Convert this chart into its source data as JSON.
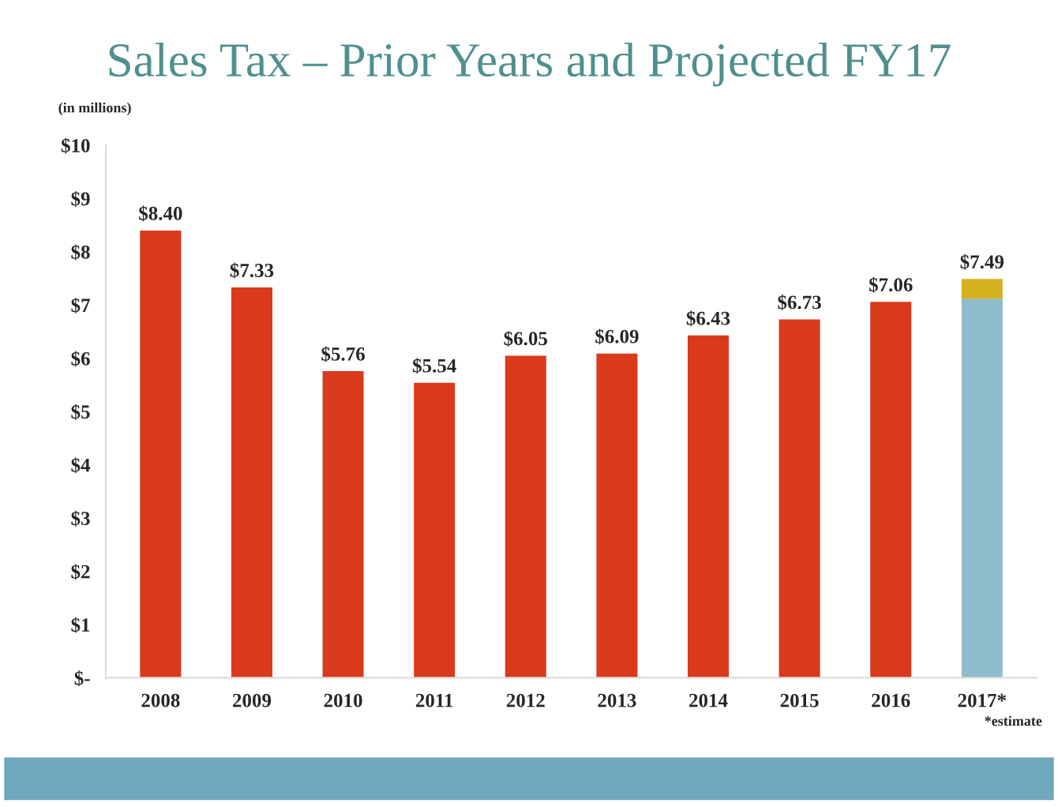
{
  "chart_data": {
    "type": "bar",
    "title": "Sales Tax – Prior Years and Projected FY17",
    "categories": [
      "2008",
      "2009",
      "2010",
      "2011",
      "2012",
      "2013",
      "2014",
      "2015",
      "2016",
      "2017*"
    ],
    "stacked": true,
    "series": [
      {
        "colors": [
          "#d93a1c",
          "#d93a1c",
          "#d93a1c",
          "#d93a1c",
          "#d93a1c",
          "#d93a1c",
          "#d93a1c",
          "#d93a1c",
          "#d93a1c",
          "#8fbccc"
        ],
        "values": [
          8.4,
          7.33,
          5.76,
          5.54,
          6.05,
          6.09,
          6.43,
          6.73,
          7.06,
          7.12
        ],
        "value_labels": [
          "$8.40",
          "$7.33",
          "$5.76",
          "$5.54",
          "$6.05",
          "$6.09",
          "$6.43",
          "$6.73",
          "$7.06",
          null
        ]
      },
      {
        "color": "#d4b01e",
        "values": [
          null,
          null,
          null,
          null,
          null,
          null,
          null,
          null,
          null,
          0.37
        ]
      }
    ],
    "totals": [
      null,
      null,
      null,
      null,
      null,
      null,
      null,
      null,
      null,
      "$7.49"
    ],
    "ylim": [
      0,
      10
    ],
    "yticks": [
      {
        "value": 0,
        "label": "$-"
      },
      {
        "value": 1,
        "label": "$1"
      },
      {
        "value": 2,
        "label": "$2"
      },
      {
        "value": 3,
        "label": "$3"
      },
      {
        "value": 4,
        "label": "$4"
      },
      {
        "value": 5,
        "label": "$5"
      },
      {
        "value": 6,
        "label": "$6"
      },
      {
        "value": 7,
        "label": "$7"
      },
      {
        "value": 8,
        "label": "$8"
      },
      {
        "value": 9,
        "label": "$9"
      },
      {
        "value": 10,
        "label": "$10"
      }
    ],
    "grid": false,
    "legend": false,
    "annotations": [
      "(in millions)",
      "*estimate"
    ]
  }
}
